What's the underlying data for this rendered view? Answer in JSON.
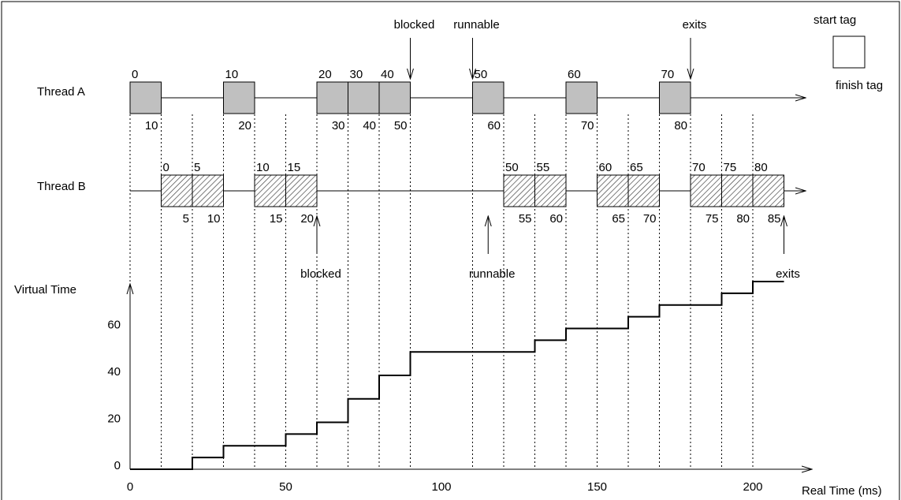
{
  "diagram": {
    "threads": [
      {
        "label": "Thread A",
        "fill": "gray",
        "blocks": [
          {
            "start_tag": "0",
            "finish_tag": "10",
            "t0": 0,
            "t1": 10
          },
          {
            "start_tag": "10",
            "finish_tag": "20",
            "t0": 30,
            "t1": 40
          },
          {
            "start_tag": "20",
            "finish_tag": "30",
            "t0": 60,
            "t1": 70
          },
          {
            "start_tag": "30",
            "finish_tag": "40",
            "t0": 70,
            "t1": 80
          },
          {
            "start_tag": "40",
            "finish_tag": "50",
            "t0": 80,
            "t1": 90
          },
          {
            "start_tag": "50",
            "finish_tag": "60",
            "t0": 110,
            "t1": 120
          },
          {
            "start_tag": "60",
            "finish_tag": "70",
            "t0": 140,
            "t1": 150
          },
          {
            "start_tag": "70",
            "finish_tag": "80",
            "t0": 170,
            "t1": 180
          }
        ],
        "events": [
          {
            "label": "blocked",
            "t": 90,
            "direction": "down"
          },
          {
            "label": "runnable",
            "t": 110,
            "direction": "down"
          },
          {
            "label": "exits",
            "t": 180,
            "direction": "down"
          }
        ]
      },
      {
        "label": "Thread B",
        "fill": "hatched",
        "blocks": [
          {
            "start_tag": "0",
            "finish_tag": "5",
            "t0": 10,
            "t1": 20
          },
          {
            "start_tag": "5",
            "finish_tag": "10",
            "t0": 20,
            "t1": 30
          },
          {
            "start_tag": "10",
            "finish_tag": "15",
            "t0": 40,
            "t1": 50
          },
          {
            "start_tag": "15",
            "finish_tag": "20",
            "t0": 50,
            "t1": 60
          },
          {
            "start_tag": "50",
            "finish_tag": "55",
            "t0": 120,
            "t1": 130
          },
          {
            "start_tag": "55",
            "finish_tag": "60",
            "t0": 130,
            "t1": 140
          },
          {
            "start_tag": "60",
            "finish_tag": "65",
            "t0": 150,
            "t1": 160
          },
          {
            "start_tag": "65",
            "finish_tag": "70",
            "t0": 160,
            "t1": 170
          },
          {
            "start_tag": "70",
            "finish_tag": "75",
            "t0": 180,
            "t1": 190
          },
          {
            "start_tag": "75",
            "finish_tag": "80",
            "t0": 190,
            "t1": 200
          },
          {
            "start_tag": "80",
            "finish_tag": "85",
            "t0": 200,
            "t1": 210
          }
        ],
        "events": [
          {
            "label": "blocked",
            "t": 60,
            "direction": "up"
          },
          {
            "label": "runnable",
            "t": 115,
            "direction": "up"
          },
          {
            "label": "exits",
            "t": 210,
            "direction": "up"
          }
        ]
      }
    ],
    "legend": {
      "start": "start tag",
      "finish": "finish tag"
    },
    "virtual_time_graph": {
      "ylabel": "Virtual Time",
      "xlabel": "Real Time (ms)",
      "y_ticks": [
        "0",
        "20",
        "40",
        "60"
      ],
      "x_ticks": [
        "0",
        "50",
        "100",
        "150",
        "200"
      ],
      "steps": [
        {
          "t": 0,
          "v": 0
        },
        {
          "t": 20,
          "v": 5
        },
        {
          "t": 30,
          "v": 10
        },
        {
          "t": 50,
          "v": 15
        },
        {
          "t": 60,
          "v": 20
        },
        {
          "t": 70,
          "v": 30
        },
        {
          "t": 80,
          "v": 40
        },
        {
          "t": 90,
          "v": 50
        },
        {
          "t": 130,
          "v": 55
        },
        {
          "t": 140,
          "v": 60
        },
        {
          "t": 160,
          "v": 65
        },
        {
          "t": 170,
          "v": 70
        },
        {
          "t": 190,
          "v": 75
        },
        {
          "t": 200,
          "v": 80
        },
        {
          "t": 210,
          "v": 80
        }
      ]
    },
    "dotted_guides_at": [
      0,
      10,
      20,
      30,
      40,
      50,
      60,
      70,
      80,
      90,
      110,
      120,
      130,
      140,
      150,
      160,
      170,
      180,
      190,
      200
    ]
  }
}
